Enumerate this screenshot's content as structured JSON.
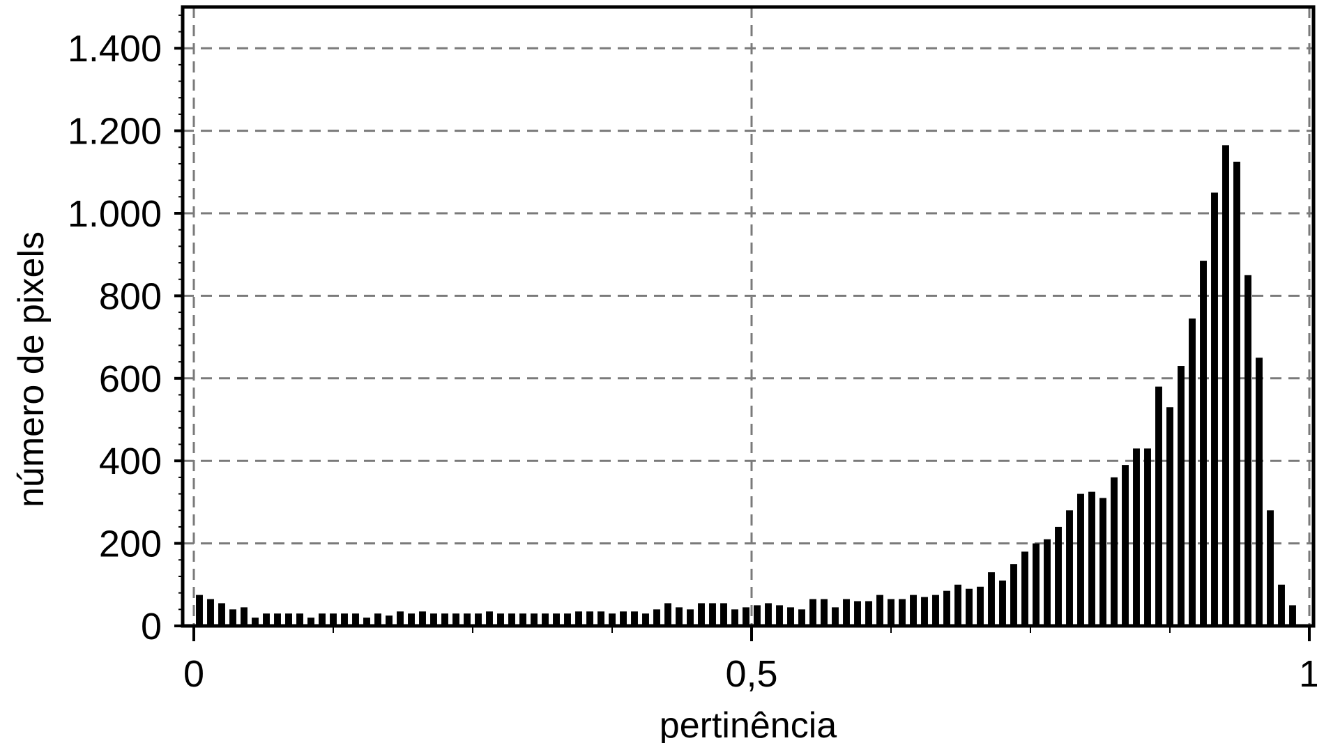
{
  "chart_data": {
    "type": "bar",
    "title": "",
    "xlabel": "pertinência",
    "ylabel": "número de pixels",
    "xlim": [
      0,
      1
    ],
    "ylim": [
      0,
      1500
    ],
    "grid": true,
    "x_ticks": [
      {
        "value": 0,
        "label": "0"
      },
      {
        "value": 0.5,
        "label": "0,5"
      },
      {
        "value": 1,
        "label": "1"
      }
    ],
    "y_ticks": [
      {
        "value": 0,
        "label": "0"
      },
      {
        "value": 200,
        "label": "200"
      },
      {
        "value": 400,
        "label": "400"
      },
      {
        "value": 600,
        "label": "600"
      },
      {
        "value": 800,
        "label": "800"
      },
      {
        "value": 1000,
        "label": "1.000"
      },
      {
        "value": 1200,
        "label": "1.200"
      },
      {
        "value": 1400,
        "label": "1.400"
      }
    ],
    "bin_width": 0.01,
    "values": [
      75,
      65,
      55,
      40,
      45,
      20,
      30,
      30,
      30,
      30,
      20,
      30,
      30,
      30,
      30,
      20,
      30,
      25,
      35,
      30,
      35,
      30,
      30,
      30,
      30,
      30,
      35,
      30,
      30,
      30,
      30,
      30,
      30,
      30,
      35,
      35,
      35,
      30,
      35,
      35,
      30,
      40,
      55,
      45,
      40,
      55,
      55,
      55,
      40,
      45,
      50,
      55,
      50,
      45,
      40,
      65,
      65,
      45,
      65,
      60,
      60,
      75,
      65,
      65,
      75,
      70,
      75,
      85,
      100,
      90,
      95,
      130,
      110,
      150,
      180,
      200,
      210,
      240,
      280,
      320,
      325,
      310,
      360,
      390,
      430,
      430,
      580,
      530,
      630,
      745,
      885,
      1050,
      1165,
      1125,
      850,
      650,
      280,
      100,
      50
    ]
  }
}
